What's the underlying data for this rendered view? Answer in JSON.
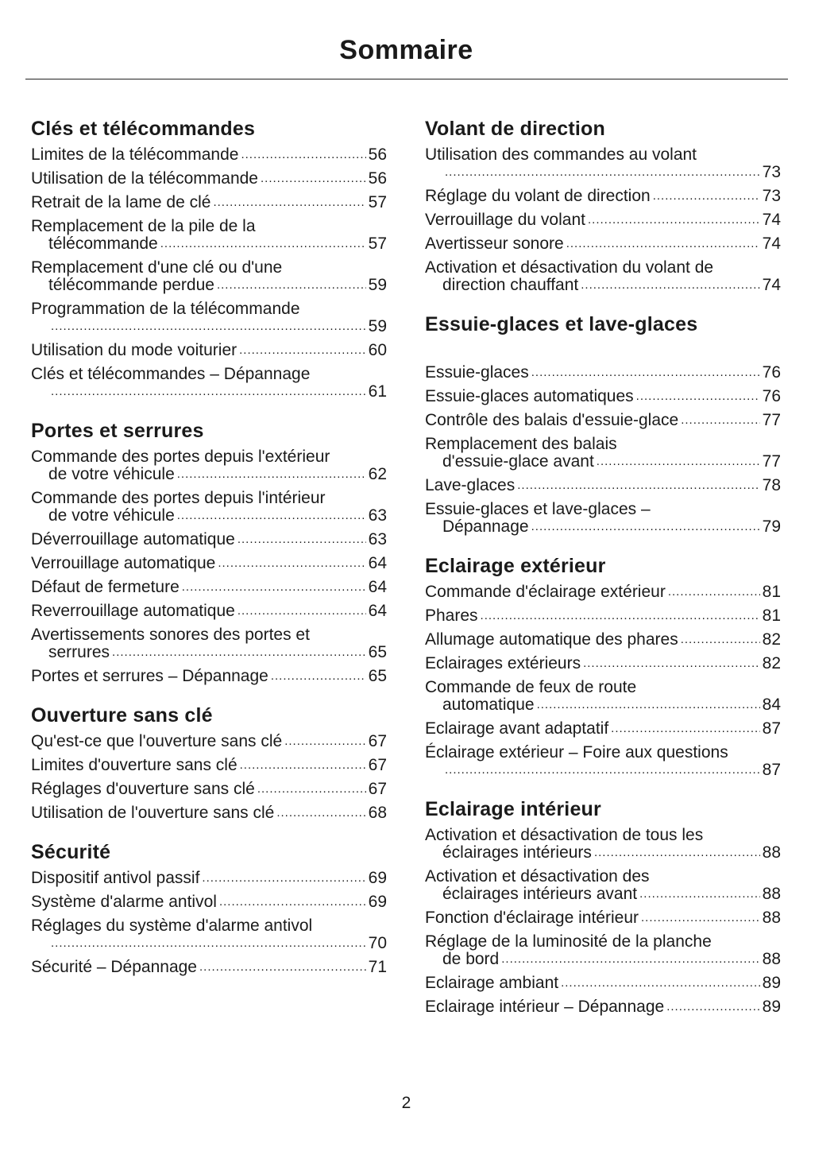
{
  "title": "Sommaire",
  "page_number": "2",
  "left_sections": [
    {
      "heading": "Clés et télécommandes",
      "entries": [
        {
          "text": "Limites de la télécommande",
          "text2": null,
          "page": "56"
        },
        {
          "text": "Utilisation de la télécommande",
          "text2": null,
          "page": "56"
        },
        {
          "text": "Retrait de la lame de clé",
          "text2": null,
          "page": "57"
        },
        {
          "text": "Remplacement de la pile de la",
          "text2": "télécommande",
          "page": "57"
        },
        {
          "text": "Remplacement d'une clé ou d'une",
          "text2": "télécommande perdue",
          "page": "59"
        },
        {
          "text": "Programmation de la télécommande",
          "text2": "",
          "page": "59"
        },
        {
          "text": "Utilisation du mode voiturier",
          "text2": null,
          "page": "60"
        },
        {
          "text": "Clés et télécommandes – Dépannage",
          "text2": "",
          "page": "61"
        }
      ]
    },
    {
      "heading": "Portes et serrures",
      "entries": [
        {
          "text": "Commande des portes depuis l'extérieur",
          "text2": "de votre véhicule",
          "page": "62"
        },
        {
          "text": "Commande des portes depuis l'intérieur",
          "text2": "de votre véhicule",
          "page": "63"
        },
        {
          "text": "Déverrouillage automatique",
          "text2": null,
          "page": "63"
        },
        {
          "text": "Verrouillage automatique",
          "text2": null,
          "page": "64"
        },
        {
          "text": "Défaut de fermeture",
          "text2": null,
          "page": "64"
        },
        {
          "text": "Reverrouillage automatique",
          "text2": null,
          "page": "64"
        },
        {
          "text": "Avertissements sonores des portes et",
          "text2": "serrures",
          "page": "65"
        },
        {
          "text": "Portes et serrures – Dépannage",
          "text2": null,
          "page": "65"
        }
      ]
    },
    {
      "heading": "Ouverture sans clé",
      "entries": [
        {
          "text": "Qu'est-ce que l'ouverture sans clé",
          "text2": null,
          "page": "67"
        },
        {
          "text": "Limites d'ouverture sans clé",
          "text2": null,
          "page": "67"
        },
        {
          "text": "Réglages d'ouverture sans clé",
          "text2": null,
          "page": "67"
        },
        {
          "text": "Utilisation de l'ouverture sans clé",
          "text2": null,
          "page": "68"
        }
      ]
    },
    {
      "heading": "Sécurité",
      "entries": [
        {
          "text": "Dispositif antivol passif",
          "text2": null,
          "page": "69"
        },
        {
          "text": "Système d'alarme antivol",
          "text2": null,
          "page": "69"
        },
        {
          "text": "Réglages du système d'alarme antivol",
          "text2": "",
          "page": "70"
        },
        {
          "text": "Sécurité – Dépannage",
          "text2": null,
          "page": "71"
        }
      ]
    }
  ],
  "right_sections": [
    {
      "heading": "Volant de direction",
      "entries": [
        {
          "text": "Utilisation des commandes au volant",
          "text2": "",
          "page": "73"
        },
        {
          "text": "Réglage du volant de direction",
          "text2": null,
          "page": "73"
        },
        {
          "text": "Verrouillage du volant",
          "text2": null,
          "page": "74"
        },
        {
          "text": "Avertisseur sonore",
          "text2": null,
          "page": "74"
        },
        {
          "text": "Activation et désactivation du volant de",
          "text2": "direction chauffant",
          "page": "74"
        }
      ]
    },
    {
      "heading": "Essuie-glaces et lave-glaces",
      "entries": [
        {
          "text": "Essuie-glaces",
          "text2": null,
          "page": "76"
        },
        {
          "text": "Essuie-glaces automatiques",
          "text2": null,
          "page": "76"
        },
        {
          "text": "Contrôle des balais d'essuie-glace",
          "text2": null,
          "page": "77"
        },
        {
          "text": "Remplacement des balais",
          "text2": "d'essuie-glace avant",
          "page": "77"
        },
        {
          "text": "Lave-glaces",
          "text2": null,
          "page": "78"
        },
        {
          "text": "Essuie-glaces et lave-glaces –",
          "text2": "Dépannage",
          "page": "79"
        }
      ]
    },
    {
      "heading": "Eclairage extérieur",
      "entries": [
        {
          "text": "Commande d'éclairage extérieur",
          "text2": null,
          "page": "81"
        },
        {
          "text": "Phares",
          "text2": null,
          "page": "81"
        },
        {
          "text": "Allumage automatique des phares",
          "text2": null,
          "page": "82"
        },
        {
          "text": "Eclairages extérieurs",
          "text2": null,
          "page": "82"
        },
        {
          "text": "Commande de feux de route",
          "text2": "automatique",
          "page": "84"
        },
        {
          "text": "Eclairage avant adaptatif",
          "text2": null,
          "page": "87"
        },
        {
          "text": "Éclairage extérieur – Foire aux questions",
          "text2": "",
          "page": "87"
        }
      ]
    },
    {
      "heading": "Eclairage intérieur",
      "entries": [
        {
          "text": "Activation et désactivation de tous les",
          "text2": "éclairages intérieurs",
          "page": "88"
        },
        {
          "text": "Activation et désactivation des",
          "text2": "éclairages intérieurs avant",
          "page": "88"
        },
        {
          "text": "Fonction d'éclairage intérieur",
          "text2": null,
          "page": "88"
        },
        {
          "text": "Réglage de la luminosité de la planche",
          "text2": "de bord",
          "page": "88"
        },
        {
          "text": "Eclairage ambiant",
          "text2": null,
          "page": "89"
        },
        {
          "text": "Eclairage intérieur – Dépannage",
          "text2": null,
          "page": "89"
        }
      ]
    }
  ]
}
